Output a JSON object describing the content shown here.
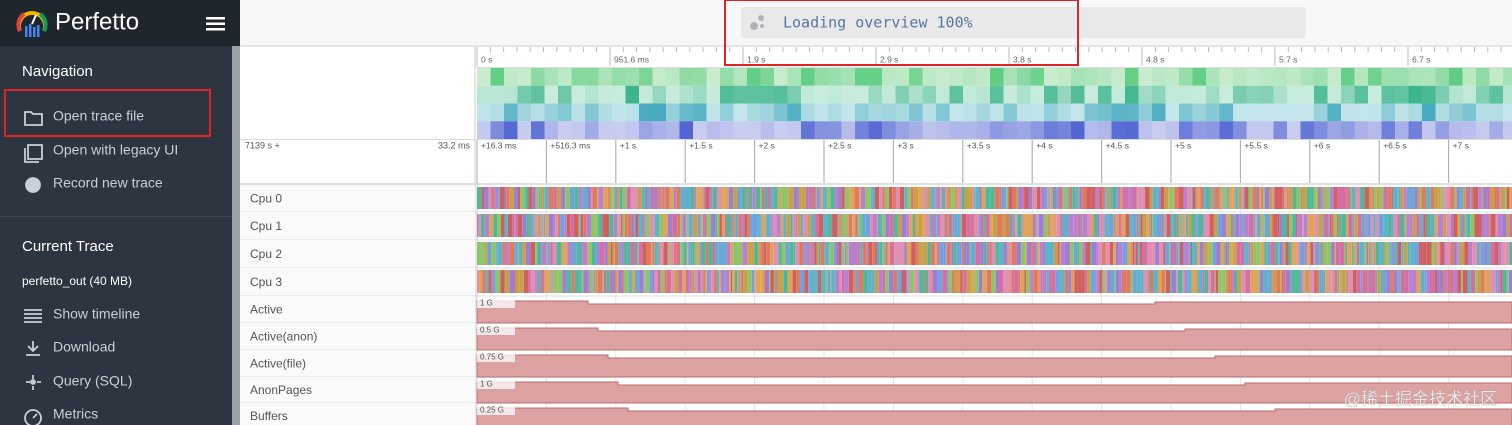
{
  "sidebar": {
    "brand": "Perfetto",
    "sections": [
      {
        "title": "Navigation",
        "items": [
          "Open trace file",
          "Open with legacy UI",
          "Record new trace"
        ]
      },
      {
        "title": "Current Trace",
        "trace_name": "perfetto_out (40 MB)",
        "items": [
          "Show timeline",
          "Download",
          "Query (SQL)",
          "Metrics"
        ]
      }
    ]
  },
  "omnibox": {
    "status": "Loading overview 100%"
  },
  "overview": {
    "ticks": [
      "0 s",
      "951.6 ms",
      "1.9 s",
      "2.9 s",
      "3.8 s",
      "4.8 s",
      "5.7 s",
      "6.7 s"
    ]
  },
  "timeline": {
    "offset": "7139 s +",
    "span": "33.2 ms",
    "ticks": [
      "+16.3 ms",
      "+516.3 ms",
      "+1 s",
      "+1.5 s",
      "+2 s",
      "+2.5 s",
      "+3 s",
      "+3.5 s",
      "+4 s",
      "+4.5 s",
      "+5 s",
      "+5.5 s",
      "+6 s",
      "+6.5 s",
      "+7 s"
    ]
  },
  "tracks": [
    {
      "name": "Cpu 0"
    },
    {
      "name": "Cpu 1"
    },
    {
      "name": "Cpu 2"
    },
    {
      "name": "Cpu 3"
    },
    {
      "name": "Active",
      "scale": "1 G"
    },
    {
      "name": "Active(anon)",
      "scale": "0.5 G"
    },
    {
      "name": "Active(file)",
      "scale": "0.75 G"
    },
    {
      "name": "AnonPages",
      "scale": "1 G"
    },
    {
      "name": "Buffers",
      "scale": "0.25 G"
    }
  ],
  "watermark": "@稀土掘金技术社区"
}
